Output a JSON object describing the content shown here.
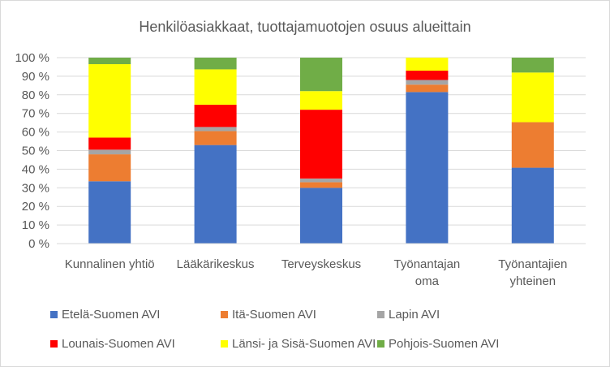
{
  "chart_data": {
    "type": "bar",
    "stacked": true,
    "title": "Henkilöasiakkaat, tuottajamuotojen osuus alueittain",
    "categories": [
      [
        "Kunnalinen yhtiö"
      ],
      [
        "Lääkärikeskus"
      ],
      [
        "Terveyskeskus"
      ],
      [
        "Työnantajan",
        "oma"
      ],
      [
        "Työnantajien",
        "yhteinen"
      ]
    ],
    "ylim": [
      0,
      100
    ],
    "y_ticks": [
      "0 %",
      "10 %",
      "20 %",
      "30 %",
      "40 %",
      "50 %",
      "60 %",
      "70 %",
      "80 %",
      "90 %",
      "100 %"
    ],
    "grid": true,
    "legend_position": "bottom",
    "series": [
      {
        "name": "Etelä-Suomen AVI",
        "color": "#4472c4",
        "values": [
          33.5,
          53.0,
          30.0,
          81.5,
          40.8
        ]
      },
      {
        "name": "Itä-Suomen AVI",
        "color": "#ed7d31",
        "values": [
          14.5,
          7.5,
          3.0,
          4.0,
          24.5
        ]
      },
      {
        "name": "Lapin AVI",
        "color": "#a5a5a5",
        "values": [
          2.5,
          2.2,
          2.0,
          2.5,
          0.0
        ]
      },
      {
        "name": "Lounais-Suomen AVI",
        "color": "#ff0000",
        "values": [
          6.5,
          12.0,
          37.0,
          5.0,
          0.0
        ]
      },
      {
        "name": "Länsi- ja Sisä-Suomen AVI",
        "color": "#ffff00",
        "values": [
          39.5,
          19.0,
          10.0,
          7.0,
          26.7
        ]
      },
      {
        "name": "Pohjois-Suomen AVI",
        "color": "#70ad47",
        "values": [
          3.5,
          6.3,
          18.0,
          0.0,
          8.0
        ]
      }
    ]
  }
}
